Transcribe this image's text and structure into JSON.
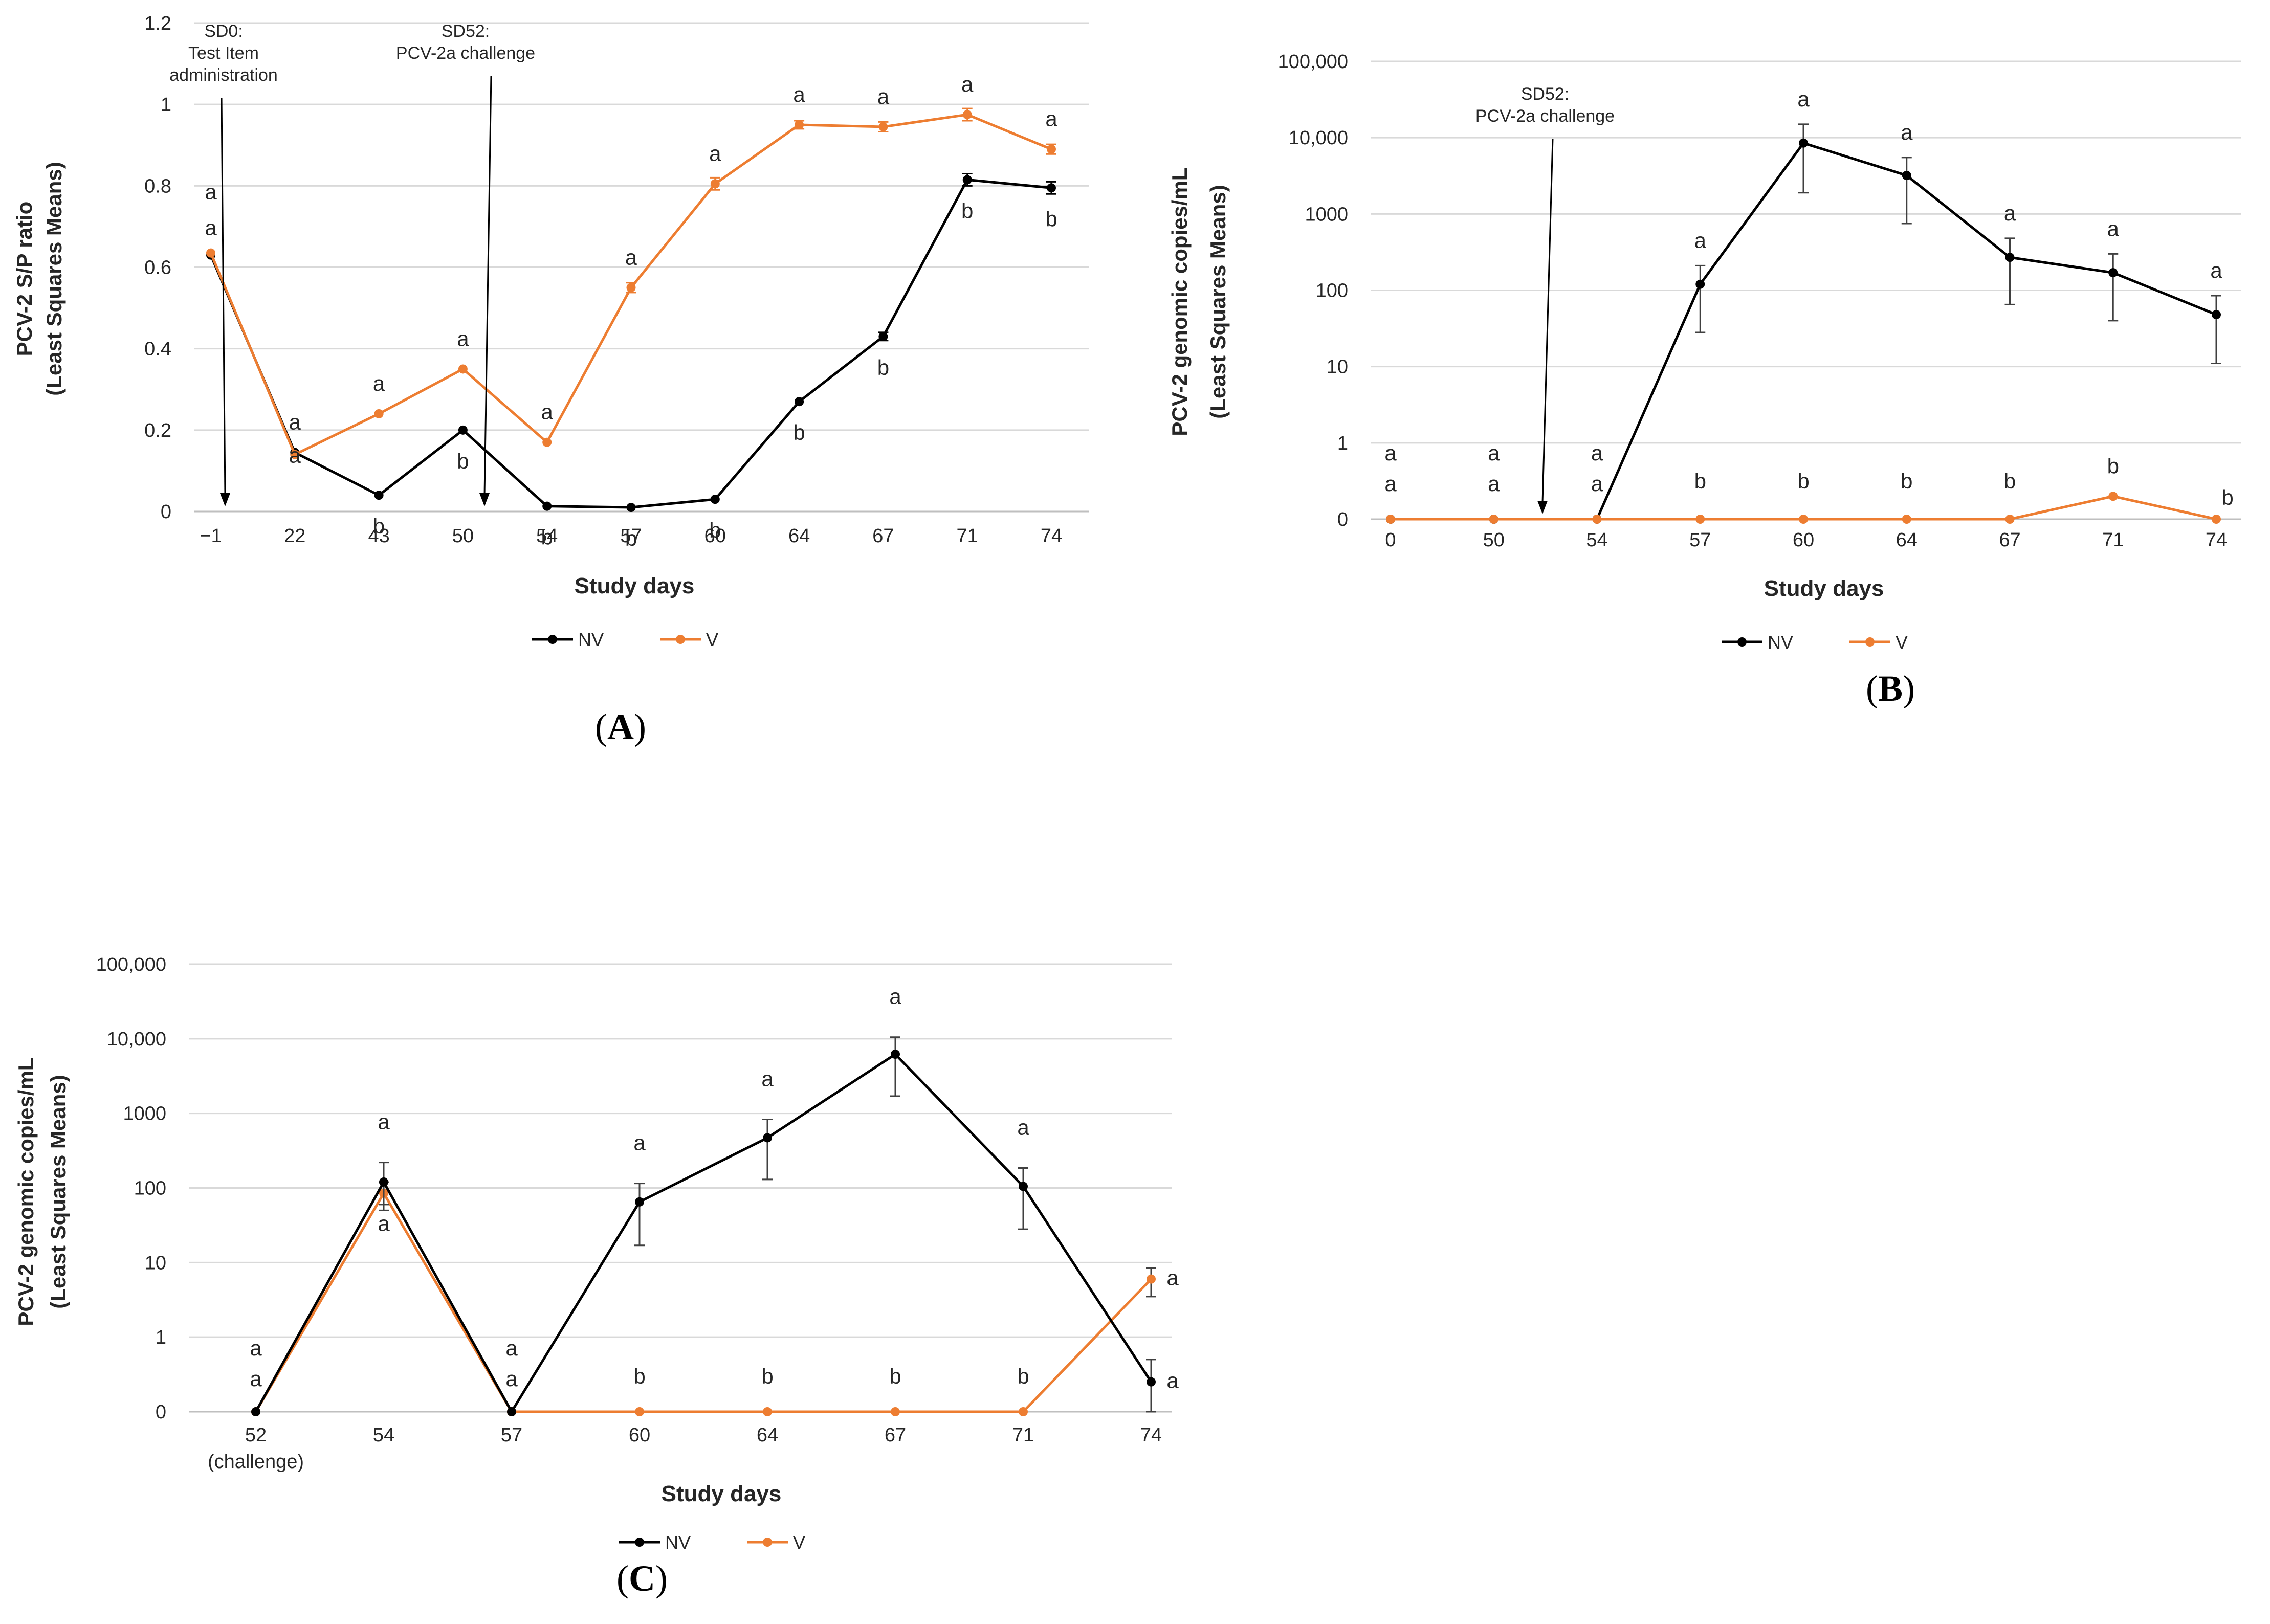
{
  "chart_data": [
    {
      "panel": "(A)",
      "panel_letter": "A",
      "type": "line",
      "scale": "linear",
      "categories": [
        "−1",
        "22",
        "43",
        "50",
        "54",
        "57",
        "60",
        "64",
        "67",
        "71",
        "74"
      ],
      "ylim": [
        0,
        1.2
      ],
      "ytick_labels": [
        "0",
        "0.2",
        "0.4",
        "0.6",
        "0.8",
        "1",
        "1.2"
      ],
      "xlabel": "Study days",
      "ylabel": [
        "PCV-2 S/P ratio",
        "(Least Squares Means)"
      ],
      "grid": true,
      "legend": "bottom-center",
      "series": [
        {
          "name": "NV",
          "color": "#000000",
          "values": [
            0.63,
            0.145,
            0.04,
            0.2,
            0.013,
            0.01,
            0.03,
            0.27,
            0.43,
            0.815,
            0.795
          ],
          "err": [
            0,
            0,
            0,
            0,
            0,
            0,
            0,
            0,
            0.01,
            0.015,
            0.015
          ]
        },
        {
          "name": "V",
          "color": "#ED7D31",
          "values": [
            0.635,
            0.14,
            0.24,
            0.35,
            0.17,
            0.55,
            0.805,
            0.95,
            0.945,
            0.975,
            0.89
          ],
          "err": [
            0,
            0,
            0,
            0,
            0,
            0.012,
            0.015,
            0.01,
            0.012,
            0.015,
            0.012
          ]
        }
      ],
      "letters": [
        [
          "a",
          "a"
        ],
        [
          "a",
          "a"
        ],
        [
          "a",
          "b"
        ],
        [
          "a",
          "b"
        ],
        [
          "a",
          "b"
        ],
        [
          "a",
          "b"
        ],
        [
          "a",
          "b"
        ],
        [
          "a",
          "b"
        ],
        [
          "a",
          "b"
        ],
        [
          "a",
          "b"
        ],
        [
          "a",
          "b"
        ]
      ],
      "annotations": [
        {
          "lines": [
            "SD0:",
            "Test Item",
            "administration"
          ],
          "at_day": "−1"
        },
        {
          "lines": [
            "SD52:",
            "PCV-2a challenge"
          ],
          "at_day": "52"
        }
      ]
    },
    {
      "panel": "(B)",
      "panel_letter": "B",
      "type": "line",
      "scale": "log",
      "categories": [
        "0",
        "50",
        "54",
        "57",
        "60",
        "64",
        "67",
        "71",
        "74"
      ],
      "ylim": [
        0,
        100000
      ],
      "ytick_labels": [
        "0",
        "1",
        "10",
        "100",
        "1000",
        "10,000",
        "100,000"
      ],
      "xlabel": "Study days",
      "ylabel": [
        "PCV-2 genomic copies/mL",
        "(Least Squares Means)"
      ],
      "grid": true,
      "legend": "bottom-center",
      "series": [
        {
          "name": "NV",
          "color": "#000000",
          "values": [
            0,
            0,
            0,
            120,
            8500,
            3200,
            270,
            170,
            48
          ],
          "err_low": [
            0,
            0,
            0,
            28,
            1900,
            750,
            65,
            40,
            11
          ],
          "err_high": [
            0,
            0,
            0,
            210,
            15000,
            5500,
            480,
            300,
            85
          ]
        },
        {
          "name": "V",
          "color": "#ED7D31",
          "values": [
            0,
            0,
            0,
            0,
            0,
            0,
            0,
            0.3,
            0
          ]
        }
      ],
      "letters": [
        [
          "a",
          "a"
        ],
        [
          "a",
          "a"
        ],
        [
          "a",
          "a"
        ],
        [
          "a",
          "b"
        ],
        [
          "a",
          "b"
        ],
        [
          "a",
          "b"
        ],
        [
          "a",
          "b"
        ],
        [
          "a",
          "b"
        ],
        [
          "a",
          "b"
        ]
      ],
      "annotations": [
        {
          "lines": [
            "SD52:",
            "PCV-2a challenge"
          ],
          "at_day": "52"
        }
      ]
    },
    {
      "panel": "(C)",
      "panel_letter": "C",
      "type": "line",
      "scale": "log",
      "categories": [
        "52",
        "54",
        "57",
        "60",
        "64",
        "67",
        "71",
        "74"
      ],
      "category_sublabels": [
        "(challenge)",
        "",
        "",
        "",
        "",
        "",
        "",
        ""
      ],
      "ylim": [
        0,
        100000
      ],
      "ytick_labels": [
        "0",
        "1",
        "10",
        "100",
        "1000",
        "10,000",
        "100,000"
      ],
      "xlabel": "Study days",
      "ylabel": [
        "PCV-2 genomic copies/mL",
        "(Least Squares Means)"
      ],
      "grid": true,
      "legend": "bottom-center",
      "series": [
        {
          "name": "NV",
          "color": "#000000",
          "values": [
            0,
            120,
            0,
            65,
            470,
            6200,
            105,
            0.4
          ],
          "err_low": [
            0,
            60,
            0,
            17,
            130,
            1700,
            28,
            0
          ],
          "err_high": [
            0,
            220,
            0,
            115,
            830,
            10500,
            185,
            0.7
          ]
        },
        {
          "name": "V",
          "color": "#ED7D31",
          "values": [
            0,
            85,
            0,
            0,
            0,
            0,
            0,
            6
          ],
          "err_low": [
            0,
            50,
            0,
            0,
            0,
            0,
            0,
            3.5
          ],
          "err_high": [
            0,
            120,
            0,
            0,
            0,
            0,
            0,
            8.5
          ]
        }
      ],
      "letters": [
        [
          "a",
          "a"
        ],
        [
          "a",
          "a"
        ],
        [
          "a",
          "a"
        ],
        [
          "a",
          "b"
        ],
        [
          "a",
          "b"
        ],
        [
          "a",
          "b"
        ],
        [
          "a",
          "b"
        ],
        [
          "a",
          "a"
        ]
      ]
    }
  ]
}
